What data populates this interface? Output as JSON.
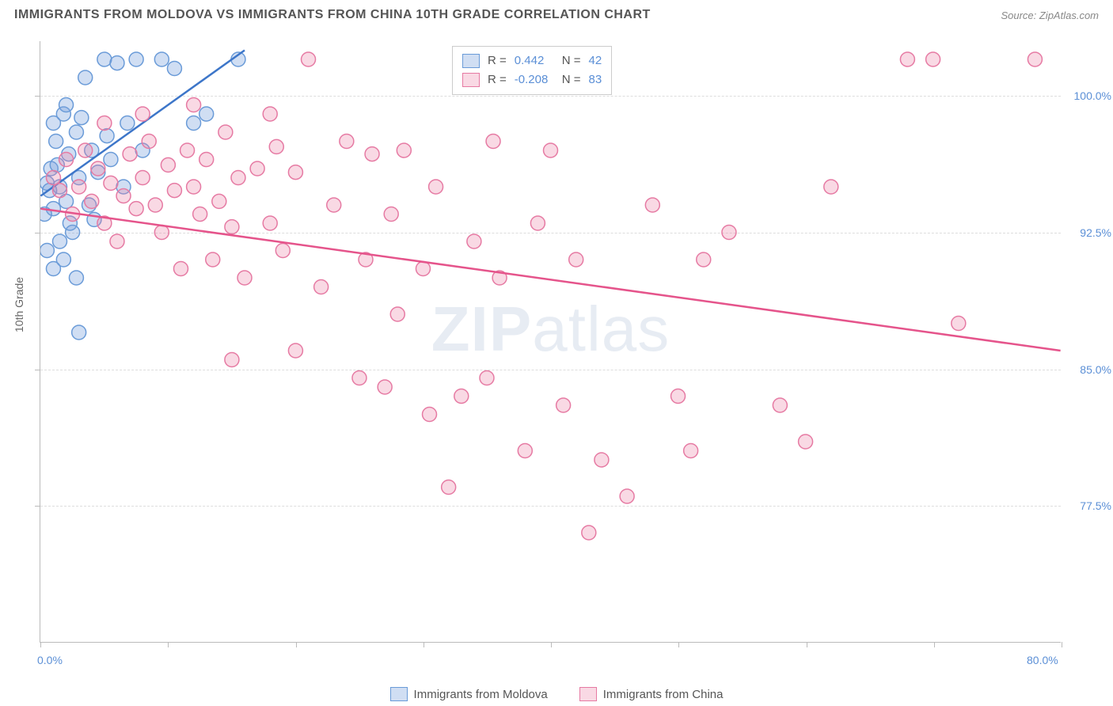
{
  "title": "IMMIGRANTS FROM MOLDOVA VS IMMIGRANTS FROM CHINA 10TH GRADE CORRELATION CHART",
  "source": "Source: ZipAtlas.com",
  "ylabel": "10th Grade",
  "watermark_a": "ZIP",
  "watermark_b": "atlas",
  "chart": {
    "type": "scatter",
    "xlim": [
      0,
      80
    ],
    "ylim": [
      70,
      103
    ],
    "xtick_min_label": "0.0%",
    "xtick_max_label": "80.0%",
    "xtick_positions": [
      0,
      10,
      20,
      30,
      40,
      50,
      60,
      70,
      80
    ],
    "ytick_labels": [
      "77.5%",
      "85.0%",
      "92.5%",
      "100.0%"
    ],
    "ytick_values": [
      77.5,
      85.0,
      92.5,
      100.0
    ],
    "grid_color": "#dddddd",
    "axis_color": "#bbbbbb",
    "background_color": "#ffffff",
    "series": [
      {
        "name": "Immigrants from Moldova",
        "r": 0.442,
        "n": 42,
        "fill": "rgba(120,160,220,0.35)",
        "stroke": "#6a9bd8",
        "line_color": "#3d76c9",
        "marker_radius": 9,
        "trend": {
          "x1": 0,
          "y1": 94.5,
          "x2": 16,
          "y2": 102.5
        },
        "points": [
          [
            0.5,
            95.2
          ],
          [
            0.8,
            96.0
          ],
          [
            1.0,
            93.8
          ],
          [
            1.2,
            97.5
          ],
          [
            1.5,
            95.0
          ],
          [
            1.8,
            99.0
          ],
          [
            2.0,
            94.2
          ],
          [
            2.2,
            96.8
          ],
          [
            2.5,
            92.5
          ],
          [
            2.8,
            98.0
          ],
          [
            3.0,
            95.5
          ],
          [
            3.5,
            101.0
          ],
          [
            3.8,
            94.0
          ],
          [
            4.0,
            97.0
          ],
          [
            4.5,
            95.8
          ],
          [
            5.0,
            102.0
          ],
          [
            5.5,
            96.5
          ],
          [
            6.0,
            101.8
          ],
          [
            6.5,
            95.0
          ],
          [
            1.0,
            98.5
          ],
          [
            1.5,
            92.0
          ],
          [
            2.0,
            99.5
          ],
          [
            0.3,
            93.5
          ],
          [
            0.7,
            94.8
          ],
          [
            1.3,
            96.2
          ],
          [
            2.3,
            93.0
          ],
          [
            3.2,
            98.8
          ],
          [
            4.2,
            93.2
          ],
          [
            5.2,
            97.8
          ],
          [
            6.8,
            98.5
          ],
          [
            7.5,
            102.0
          ],
          [
            8.0,
            97.0
          ],
          [
            9.5,
            102.0
          ],
          [
            10.5,
            101.5
          ],
          [
            12.0,
            98.5
          ],
          [
            13.0,
            99.0
          ],
          [
            15.5,
            102.0
          ],
          [
            3.0,
            87.0
          ],
          [
            2.8,
            90.0
          ],
          [
            1.8,
            91.0
          ],
          [
            0.5,
            91.5
          ],
          [
            1.0,
            90.5
          ]
        ]
      },
      {
        "name": "Immigrants from China",
        "r": -0.208,
        "n": 83,
        "fill": "rgba(235,130,165,0.30)",
        "stroke": "#e67aa3",
        "line_color": "#e5548b",
        "marker_radius": 9,
        "trend": {
          "x1": 0,
          "y1": 93.8,
          "x2": 80,
          "y2": 86.0
        },
        "points": [
          [
            1,
            95.5
          ],
          [
            1.5,
            94.8
          ],
          [
            2,
            96.5
          ],
          [
            2.5,
            93.5
          ],
          [
            3,
            95.0
          ],
          [
            3.5,
            97.0
          ],
          [
            4,
            94.2
          ],
          [
            4.5,
            96.0
          ],
          [
            5,
            93.0
          ],
          [
            5.5,
            95.2
          ],
          [
            6,
            92.0
          ],
          [
            6.5,
            94.5
          ],
          [
            7,
            96.8
          ],
          [
            7.5,
            93.8
          ],
          [
            8,
            95.5
          ],
          [
            8.5,
            97.5
          ],
          [
            9,
            94.0
          ],
          [
            9.5,
            92.5
          ],
          [
            10,
            96.2
          ],
          [
            10.5,
            94.8
          ],
          [
            11,
            90.5
          ],
          [
            11.5,
            97.0
          ],
          [
            12,
            95.0
          ],
          [
            12.5,
            93.5
          ],
          [
            13,
            96.5
          ],
          [
            13.5,
            91.0
          ],
          [
            14,
            94.2
          ],
          [
            14.5,
            98.0
          ],
          [
            15,
            92.8
          ],
          [
            15.5,
            95.5
          ],
          [
            16,
            90.0
          ],
          [
            17,
            96.0
          ],
          [
            18,
            93.0
          ],
          [
            18.5,
            97.2
          ],
          [
            19,
            91.5
          ],
          [
            20,
            95.8
          ],
          [
            21,
            102.0
          ],
          [
            22,
            89.5
          ],
          [
            23,
            94.0
          ],
          [
            24,
            97.5
          ],
          [
            25,
            84.5
          ],
          [
            25.5,
            91.0
          ],
          [
            26,
            96.8
          ],
          [
            27,
            84.0
          ],
          [
            27.5,
            93.5
          ],
          [
            28,
            88.0
          ],
          [
            28.5,
            97.0
          ],
          [
            30,
            90.5
          ],
          [
            30.5,
            82.5
          ],
          [
            31,
            95.0
          ],
          [
            32,
            78.5
          ],
          [
            33,
            83.5
          ],
          [
            34,
            92.0
          ],
          [
            35,
            84.5
          ],
          [
            35.5,
            97.5
          ],
          [
            36,
            90.0
          ],
          [
            37,
            102.0
          ],
          [
            38,
            80.5
          ],
          [
            39,
            93.0
          ],
          [
            40,
            97.0
          ],
          [
            41,
            83.0
          ],
          [
            42,
            91.0
          ],
          [
            43,
            76.0
          ],
          [
            44,
            80.0
          ],
          [
            46,
            78.0
          ],
          [
            48,
            94.0
          ],
          [
            50,
            83.5
          ],
          [
            51,
            80.5
          ],
          [
            52,
            91.0
          ],
          [
            54,
            92.5
          ],
          [
            58,
            83.0
          ],
          [
            60,
            81.0
          ],
          [
            62,
            95.0
          ],
          [
            68,
            102.0
          ],
          [
            70,
            102.0
          ],
          [
            72,
            87.5
          ],
          [
            78,
            102.0
          ],
          [
            5,
            98.5
          ],
          [
            8,
            99.0
          ],
          [
            12,
            99.5
          ],
          [
            18,
            99.0
          ],
          [
            15,
            85.5
          ],
          [
            20,
            86.0
          ]
        ]
      }
    ]
  },
  "legend_top": {
    "r_label": "R =",
    "n_label": "N ="
  },
  "legend_bottom": {
    "moldova": "Immigrants from Moldova",
    "china": "Immigrants from China"
  }
}
